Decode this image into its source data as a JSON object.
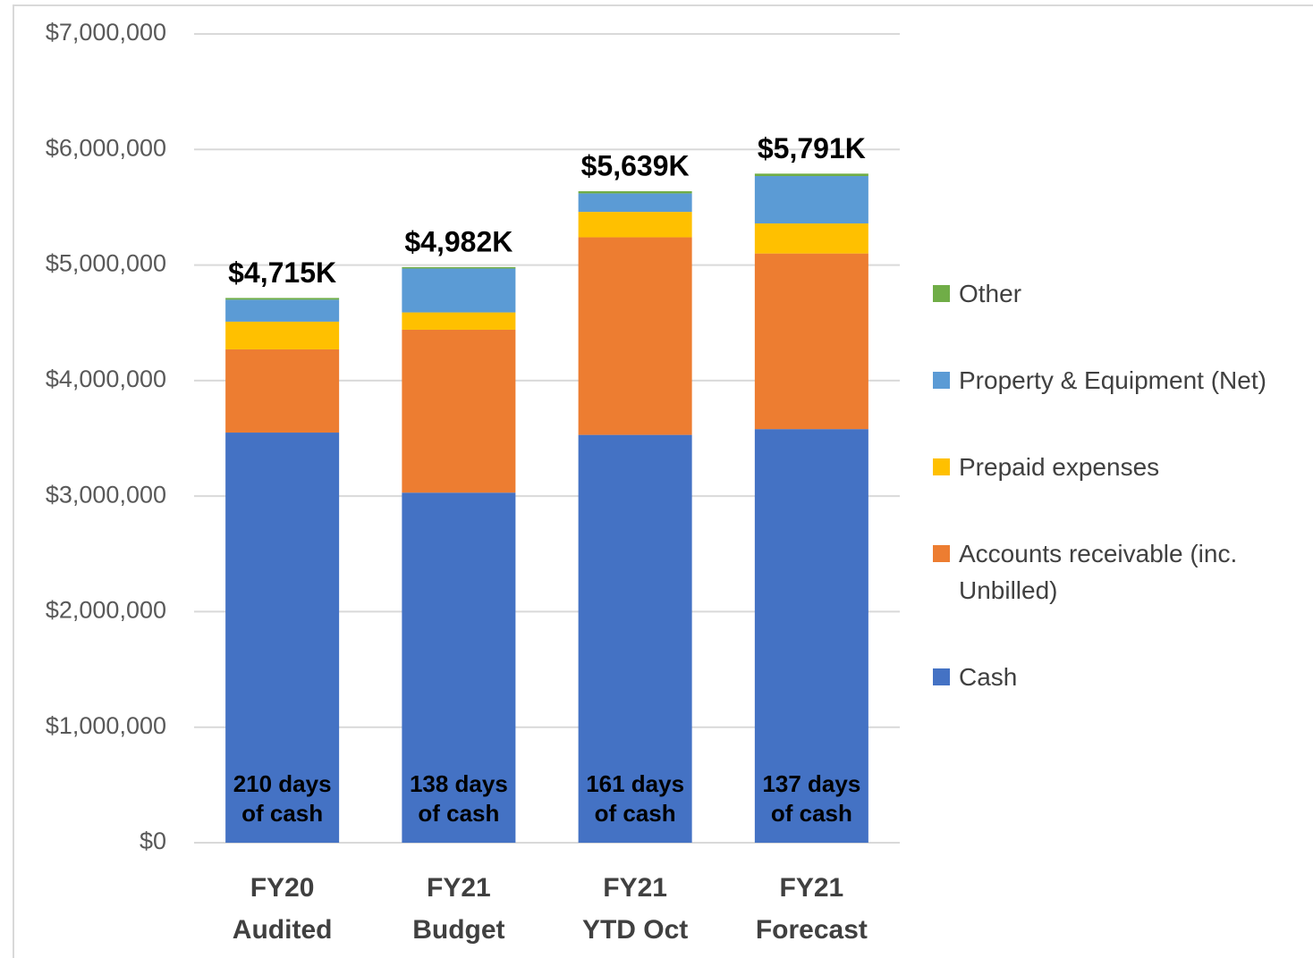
{
  "chart_data": {
    "type": "stacked_bar",
    "categories": [
      [
        "FY20",
        "Audited"
      ],
      [
        "FY21",
        "Budget"
      ],
      [
        "FY21",
        "YTD Oct"
      ],
      [
        "FY21",
        "Forecast"
      ]
    ],
    "series": [
      {
        "name": "Cash",
        "color": "#4472c4",
        "values": [
          3550000,
          3030000,
          3530000,
          3580000
        ]
      },
      {
        "name": "Accounts receivable (inc. Unbilled)",
        "color": "#ed7d31",
        "values": [
          720000,
          1410000,
          1710000,
          1520000
        ]
      },
      {
        "name": "Prepaid expenses",
        "color": "#ffc000",
        "values": [
          240000,
          150000,
          220000,
          260000
        ]
      },
      {
        "name": "Property & Equipment (Net)",
        "color": "#5b9bd5",
        "values": [
          190000,
          380000,
          160000,
          410000
        ]
      },
      {
        "name": "Other",
        "color": "#70ad47",
        "values": [
          15000,
          12000,
          19000,
          21000
        ]
      }
    ],
    "total_labels": [
      "$4,715K",
      "$4,982K",
      "$5,639K",
      "$5,791K"
    ],
    "cash_days_labels": [
      [
        "210 days",
        "of cash"
      ],
      [
        "138 days",
        "of cash"
      ],
      [
        "161 days",
        "of cash"
      ],
      [
        "137 days",
        "of cash"
      ]
    ],
    "ylim": [
      0,
      7000000
    ],
    "yticks": [
      {
        "value": 0,
        "label": "$0"
      },
      {
        "value": 1000000,
        "label": "$1,000,000"
      },
      {
        "value": 2000000,
        "label": "$2,000,000"
      },
      {
        "value": 3000000,
        "label": "$3,000,000"
      },
      {
        "value": 4000000,
        "label": "$4,000,000"
      },
      {
        "value": 5000000,
        "label": "$5,000,000"
      },
      {
        "value": 6000000,
        "label": "$6,000,000"
      },
      {
        "value": 7000000,
        "label": "$7,000,000"
      }
    ],
    "grid": true,
    "legend": "right"
  }
}
